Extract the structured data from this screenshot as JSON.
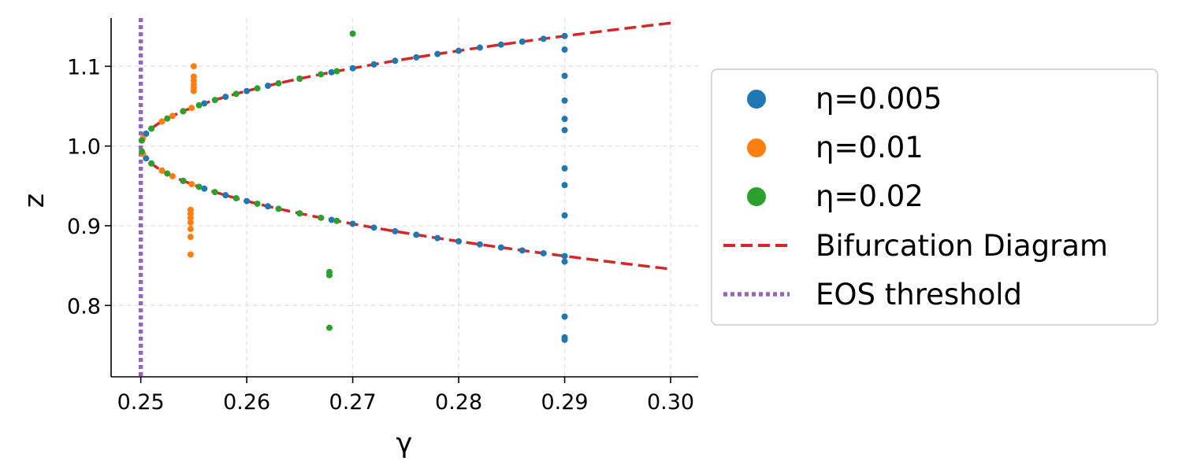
{
  "chart_data": {
    "type": "scatter",
    "xlabel": "γ",
    "ylabel": "z",
    "xlim": [
      0.2472,
      0.3026
    ],
    "ylim": [
      0.7105,
      1.1605
    ],
    "x_ticks": [
      0.25,
      0.26,
      0.27,
      0.28,
      0.29,
      0.3
    ],
    "x_tick_labels": [
      "0.25",
      "0.26",
      "0.27",
      "0.28",
      "0.29",
      "0.30"
    ],
    "y_ticks": [
      0.8,
      0.9,
      1.0,
      1.1
    ],
    "y_tick_labels": [
      "0.8",
      "0.9",
      "1.0",
      "1.1"
    ],
    "grid": true,
    "legend_position": "right-outside",
    "series": [
      {
        "name": "η=0.005",
        "kind": "scatter",
        "color": "#1f77b4",
        "branch_x": [
          0.2505,
          0.252,
          0.254,
          0.256,
          0.258,
          0.26,
          0.262,
          0.265,
          0.268,
          0.27,
          0.272,
          0.274,
          0.276,
          0.278,
          0.28,
          0.282,
          0.284,
          0.286,
          0.288,
          0.29
        ],
        "extra_points": [
          {
            "x": 0.29,
            "y": 1.121
          },
          {
            "x": 0.29,
            "y": 1.088
          },
          {
            "x": 0.29,
            "y": 1.057
          },
          {
            "x": 0.29,
            "y": 1.034
          },
          {
            "x": 0.29,
            "y": 1.02
          },
          {
            "x": 0.29,
            "y": 0.972
          },
          {
            "x": 0.29,
            "y": 0.951
          },
          {
            "x": 0.29,
            "y": 0.913
          },
          {
            "x": 0.29,
            "y": 0.855
          },
          {
            "x": 0.29,
            "y": 0.786
          },
          {
            "x": 0.29,
            "y": 0.76
          },
          {
            "x": 0.29,
            "y": 0.757
          }
        ]
      },
      {
        "name": "η=0.01",
        "kind": "scatter",
        "color": "#ff7f0e",
        "branch_x": [
          0.2502,
          0.251,
          0.252,
          0.253,
          0.254,
          0.2548
        ],
        "extra_points": [
          {
            "x": 0.255,
            "y": 1.1
          },
          {
            "x": 0.255,
            "y": 1.087
          },
          {
            "x": 0.255,
            "y": 1.082
          },
          {
            "x": 0.255,
            "y": 1.077
          },
          {
            "x": 0.255,
            "y": 1.073
          },
          {
            "x": 0.255,
            "y": 1.069
          },
          {
            "x": 0.2547,
            "y": 0.92
          },
          {
            "x": 0.2547,
            "y": 0.915
          },
          {
            "x": 0.2547,
            "y": 0.91
          },
          {
            "x": 0.2547,
            "y": 0.904
          },
          {
            "x": 0.2547,
            "y": 0.896
          },
          {
            "x": 0.2547,
            "y": 0.886
          },
          {
            "x": 0.2547,
            "y": 0.864
          }
        ]
      },
      {
        "name": "η=0.02",
        "kind": "scatter",
        "color": "#2ca02c",
        "branch_x": [
          0.2501,
          0.251,
          0.2525,
          0.254,
          0.2555,
          0.257,
          0.259,
          0.261,
          0.263,
          0.265,
          0.267,
          0.2685
        ],
        "extra_points": [
          {
            "x": 0.27,
            "y": 1.141
          },
          {
            "x": 0.2678,
            "y": 0.772
          },
          {
            "x": 0.2678,
            "y": 0.838
          },
          {
            "x": 0.2678,
            "y": 0.842
          }
        ]
      },
      {
        "name": "Bifurcation Diagram",
        "kind": "dashed-line",
        "color": "#d62728",
        "x_range": [
          0.25,
          0.3
        ]
      },
      {
        "name": "EOS threshold",
        "kind": "dotted-vertical",
        "color": "#9467bd",
        "x": 0.25
      }
    ]
  }
}
